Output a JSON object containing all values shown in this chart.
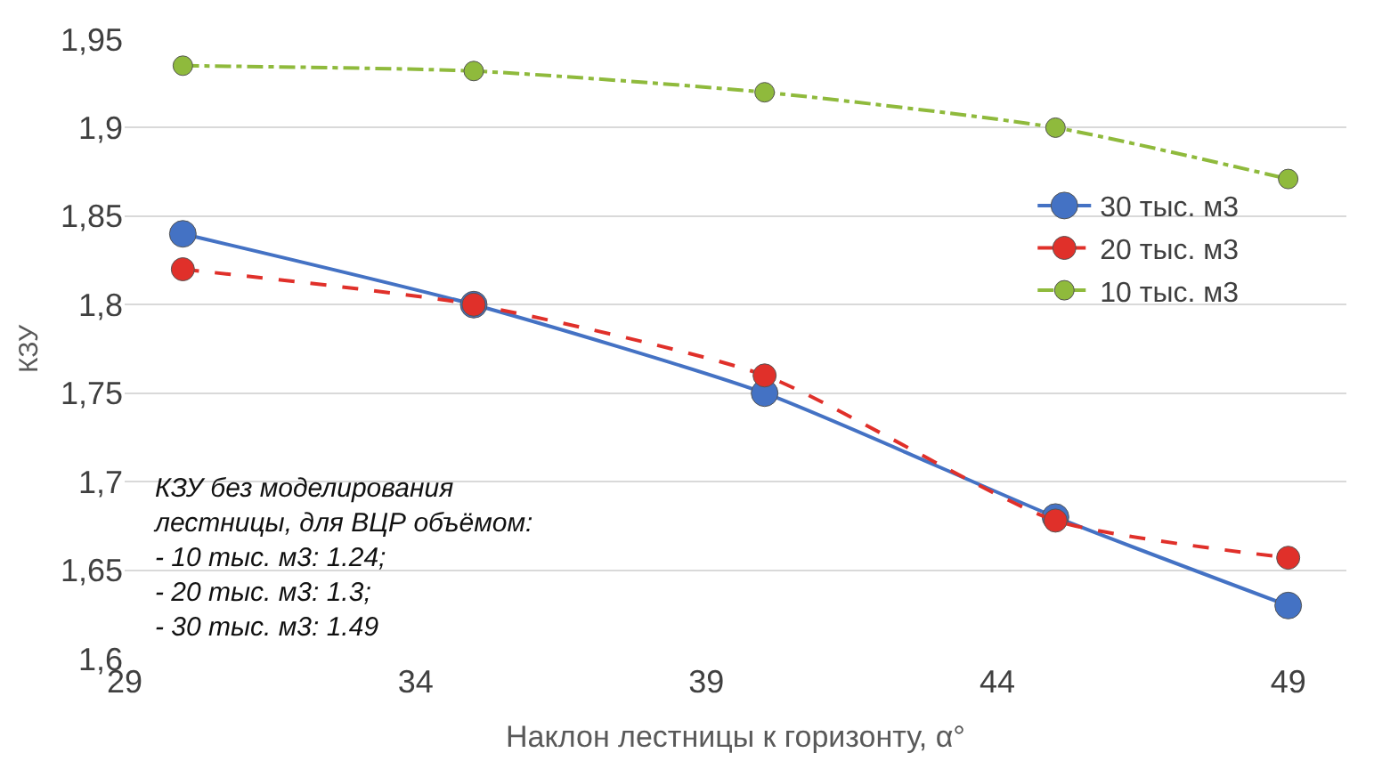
{
  "chart_data": {
    "type": "line",
    "xlabel": "Наклон лестницы к горизонту, α°",
    "ylabel": "КЗУ",
    "x": [
      30,
      35,
      40,
      45,
      49
    ],
    "series": [
      {
        "name": "30 тыс. м3",
        "color": "#4472c4",
        "values": [
          1.84,
          1.8,
          1.75,
          1.68,
          1.63
        ],
        "line_style": "solid"
      },
      {
        "name": "20 тыс. м3",
        "color": "#e0302a",
        "values": [
          1.82,
          1.8,
          1.76,
          1.678,
          1.657
        ],
        "line_style": "dashed"
      },
      {
        "name": "10 тыс. м3",
        "color": "#8fba3c",
        "values": [
          1.935,
          1.932,
          1.92,
          1.9,
          1.871
        ],
        "line_style": "dashdot"
      }
    ],
    "xlim": [
      29,
      50
    ],
    "xticks": [
      29,
      34,
      39,
      44,
      49
    ],
    "ylim": [
      1.6,
      1.95
    ],
    "yticks": [
      {
        "value": 1.6,
        "label": "1,6"
      },
      {
        "value": 1.65,
        "label": "1,65"
      },
      {
        "value": 1.7,
        "label": "1,7"
      },
      {
        "value": 1.75,
        "label": "1,75"
      },
      {
        "value": 1.8,
        "label": "1,8"
      },
      {
        "value": 1.85,
        "label": "1,85"
      },
      {
        "value": 1.9,
        "label": "1,9"
      },
      {
        "value": 1.95,
        "label": "1,95"
      }
    ],
    "grid": "y",
    "legend": "right",
    "marker": "circle",
    "annotations": [
      "КЗУ без моделирования\nлестницы, для ВЦР объёмом:\n- 10 тыс. м3: 1.24;\n- 20 тыс. м3: 1.3;\n- 30 тыс. м3: 1.49"
    ]
  }
}
